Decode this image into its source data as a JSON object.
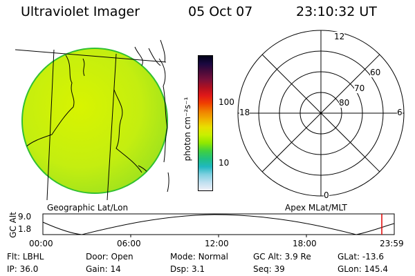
{
  "header": {
    "title": "Ultraviolet Imager",
    "date": "05 Oct 07",
    "time": "23:10:32 UT"
  },
  "colorbar": {
    "label": "photon cm⁻²s⁻¹",
    "ticks": [
      "100",
      "10"
    ],
    "colors": [
      "#000018",
      "#1a0840",
      "#4a0a3a",
      "#78103a",
      "#b01020",
      "#e01818",
      "#f04000",
      "#f08000",
      "#f0b000",
      "#e8e000",
      "#c8f000",
      "#90e800",
      "#40d040",
      "#20c080",
      "#20b8c0",
      "#80d0e0",
      "#c0e0f0",
      "#f0f0f8"
    ]
  },
  "left_map": {
    "label": "Geographic Lat/Lon",
    "fill_color": "#c8f000",
    "edge_color": "#30c030"
  },
  "right_map": {
    "label": "Apex MLat/MLT",
    "mlt_labels": {
      "top": "12",
      "left": "18",
      "right": "6",
      "bottom": "0"
    },
    "mlat_labels": [
      "60",
      "70",
      "80"
    ]
  },
  "orbit_plot": {
    "ylabel": "GC Alt",
    "yticks": [
      "9.0",
      "1.8"
    ],
    "xticks": [
      "00:00",
      "06:00",
      "12:00",
      "18:00",
      "23:59"
    ],
    "marker_color": "#e00000"
  },
  "status": {
    "row1": [
      {
        "key": "Flt:",
        "value": "LBHL"
      },
      {
        "key": "Door:",
        "value": "Open"
      },
      {
        "key": "Mode:",
        "value": "Normal"
      },
      {
        "key": "GC Alt:",
        "value": "3.9 Re"
      },
      {
        "key": "GLat:",
        "value": "-13.6"
      }
    ],
    "row2": [
      {
        "key": "IP:",
        "value": "36.0"
      },
      {
        "key": "Gain:",
        "value": "14"
      },
      {
        "key": "Dsp:",
        "value": "3.1"
      },
      {
        "key": "Seq:",
        "value": "39"
      },
      {
        "key": "GLon:",
        "value": "145.4"
      }
    ]
  }
}
